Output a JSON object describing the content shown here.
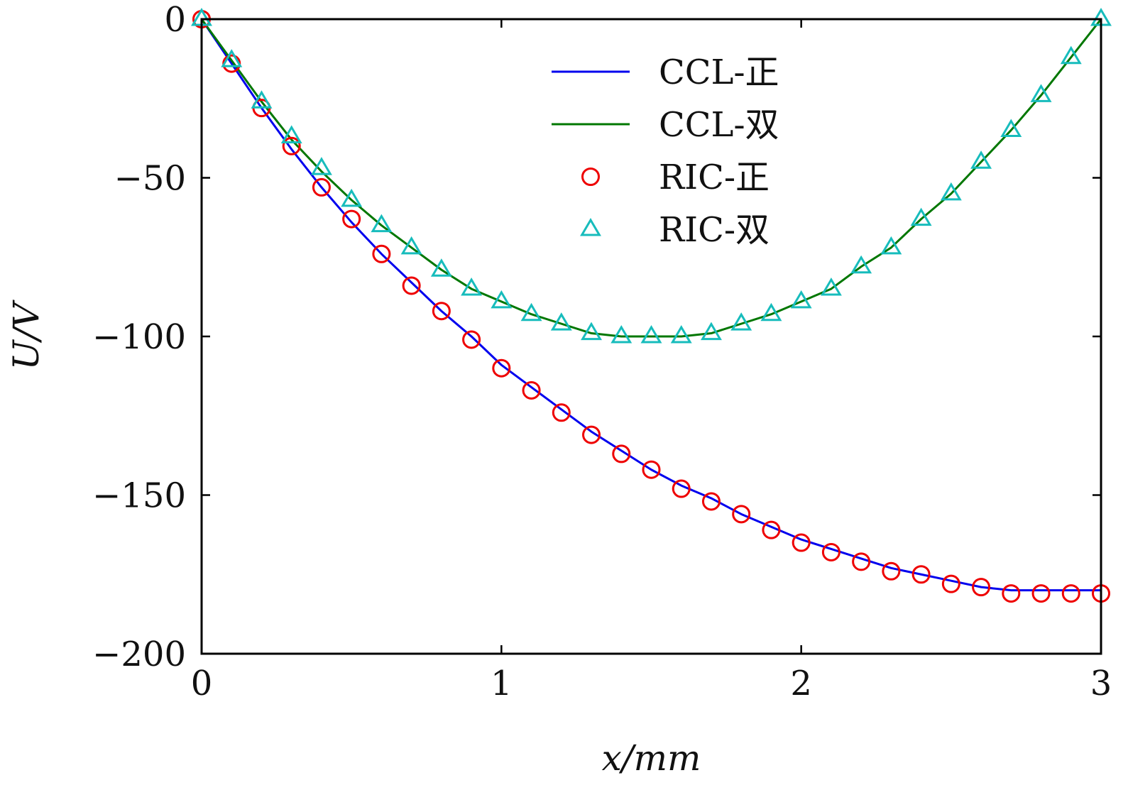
{
  "chart_data": {
    "type": "line",
    "title": "",
    "xlabel": "x/mm",
    "ylabel": "U/V",
    "xlim": [
      0,
      3
    ],
    "ylim": [
      -200,
      0
    ],
    "xticks": [
      0,
      1,
      2,
      3
    ],
    "yticks": [
      0,
      -50,
      -100,
      -150,
      -200
    ],
    "xtick_labels": [
      "0",
      "1",
      "2",
      "3"
    ],
    "ytick_labels": [
      "0",
      "−50",
      "−100",
      "−150",
      "−200"
    ],
    "grid": false,
    "legend_position": "top-center",
    "series": [
      {
        "name": "CCL-正",
        "kind": "line",
        "color": "#0000ee",
        "x": [
          0,
          0.1,
          0.2,
          0.3,
          0.4,
          0.5,
          0.6,
          0.7,
          0.8,
          0.9,
          1.0,
          1.1,
          1.2,
          1.3,
          1.4,
          1.5,
          1.6,
          1.7,
          1.8,
          1.9,
          2.0,
          2.1,
          2.2,
          2.3,
          2.4,
          2.5,
          2.6,
          2.7,
          2.8,
          2.9,
          3.0
        ],
        "y": [
          0,
          -14,
          -28,
          -41,
          -53,
          -64,
          -74,
          -83,
          -92,
          -100,
          -109,
          -116,
          -123,
          -130,
          -136,
          -142,
          -147,
          -151,
          -156,
          -160,
          -164,
          -167,
          -170,
          -173,
          -175,
          -177,
          -179,
          -180,
          -180,
          -180,
          -180
        ]
      },
      {
        "name": "CCL-双",
        "kind": "line",
        "color": "#007700",
        "x": [
          0,
          0.1,
          0.2,
          0.3,
          0.4,
          0.5,
          0.6,
          0.7,
          0.8,
          0.9,
          1.0,
          1.1,
          1.2,
          1.3,
          1.4,
          1.5,
          1.6,
          1.7,
          1.8,
          1.9,
          2.0,
          2.1,
          2.2,
          2.3,
          2.4,
          2.5,
          2.6,
          2.7,
          2.8,
          2.9,
          3.0
        ],
        "y": [
          0,
          -13,
          -26,
          -38,
          -48,
          -57,
          -65,
          -72,
          -79,
          -85,
          -89,
          -93,
          -96,
          -99,
          -100,
          -100,
          -100,
          -99,
          -96,
          -93,
          -89,
          -85,
          -78,
          -72,
          -63,
          -55,
          -45,
          -35,
          -24,
          -12,
          0
        ]
      },
      {
        "name": "RIC-正",
        "kind": "marker",
        "marker": "circle",
        "color": "#ee0000",
        "x": [
          0,
          0.1,
          0.2,
          0.3,
          0.4,
          0.5,
          0.6,
          0.7,
          0.8,
          0.9,
          1.0,
          1.1,
          1.2,
          1.3,
          1.4,
          1.5,
          1.6,
          1.7,
          1.8,
          1.9,
          2.0,
          2.1,
          2.2,
          2.3,
          2.4,
          2.5,
          2.6,
          2.7,
          2.8,
          2.9,
          3.0
        ],
        "y": [
          0,
          -14,
          -28,
          -40,
          -53,
          -63,
          -74,
          -84,
          -92,
          -101,
          -110,
          -117,
          -124,
          -131,
          -137,
          -142,
          -148,
          -152,
          -156,
          -161,
          -165,
          -168,
          -171,
          -174,
          -175,
          -178,
          -179,
          -181,
          -181,
          -181,
          -181
        ]
      },
      {
        "name": "RIC-双",
        "kind": "marker",
        "marker": "triangle",
        "color": "#17bcbc",
        "x": [
          0,
          0.1,
          0.2,
          0.3,
          0.4,
          0.5,
          0.6,
          0.7,
          0.8,
          0.9,
          1.0,
          1.1,
          1.2,
          1.3,
          1.4,
          1.5,
          1.6,
          1.7,
          1.8,
          1.9,
          2.0,
          2.1,
          2.2,
          2.3,
          2.4,
          2.5,
          2.6,
          2.7,
          2.8,
          2.9,
          3.0
        ],
        "y": [
          0,
          -13,
          -26,
          -37,
          -47,
          -57,
          -65,
          -72,
          -79,
          -85,
          -89,
          -93,
          -96,
          -99,
          -100,
          -100,
          -100,
          -99,
          -96,
          -93,
          -89,
          -85,
          -78,
          -72,
          -63,
          -55,
          -45,
          -35,
          -24,
          -12,
          0
        ]
      }
    ]
  }
}
